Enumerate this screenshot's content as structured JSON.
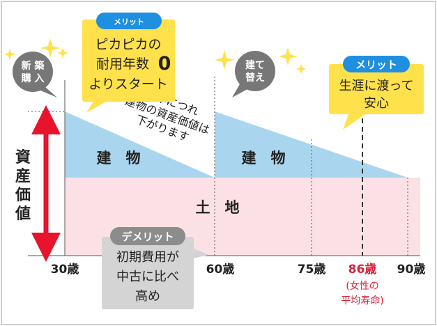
{
  "axis": {
    "ylabel": "資産価値",
    "ticks": [
      {
        "label": "30歳",
        "highlight": false
      },
      {
        "label": "60歳",
        "highlight": false
      },
      {
        "label": "75歳",
        "highlight": false
      },
      {
        "label": "86歳",
        "highlight": true
      },
      {
        "label": "90歳",
        "highlight": false
      }
    ],
    "lifespan_note": [
      "(女性の",
      "平均寿命)"
    ]
  },
  "regions": {
    "building_1": "建　物",
    "building_2": "建　物",
    "land": "土　地"
  },
  "bubbles": {
    "new_purchase": [
      "新 築",
      "購 入"
    ],
    "rebuild": [
      "建て",
      "替え"
    ]
  },
  "callouts": {
    "merit_left": {
      "badge": "メリット",
      "lines": [
        "ピカピカの",
        "耐用年数",
        "よりスタート"
      ],
      "big": "0"
    },
    "merit_right": {
      "badge": "メリット",
      "lines": [
        "生涯に渡って",
        "安心"
      ]
    },
    "demerit": {
      "badge": "デメリット",
      "lines": [
        "初期費用が",
        "中古に比べ",
        "高め"
      ]
    }
  },
  "annotation": [
    "経年につれ",
    "建物の資産価値は",
    "下がります"
  ],
  "colors": {
    "building": "#a9d6ee",
    "land": "#fbe1e5",
    "arrow": "#e8132c",
    "merit_badge": "#1f8fe0",
    "merit_box": "#ffe14c",
    "demerit_box": "#d4d4d4",
    "demerit_badge": "#8c8c8c",
    "highlight_text": "#d9213a"
  }
}
